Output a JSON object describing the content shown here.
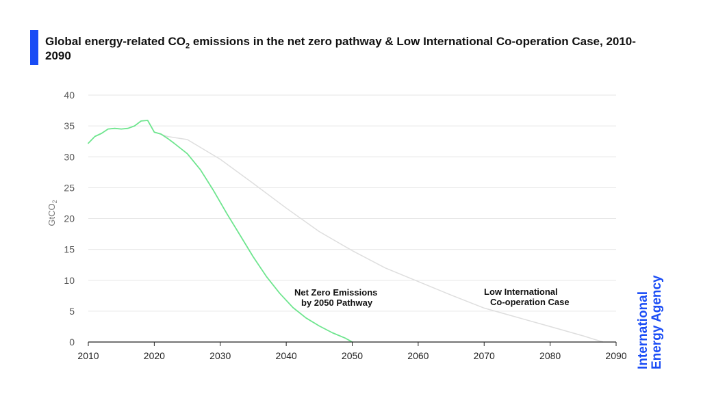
{
  "colors": {
    "accent": "#1a4cf5",
    "title": "#111111",
    "grid": "#e6e6e6",
    "axis": "#222222",
    "tick_text": "#555555",
    "net_zero": "#6ee58e",
    "low_coop": "#dedede"
  },
  "title": {
    "prefix": "Global energy-related CO",
    "sub": "2",
    "suffix": " emissions in the net zero pathway & Low International Co-operation Case, 2010-2090"
  },
  "branding": {
    "line1": "International",
    "line2": "Energy Agency"
  },
  "chart_data": {
    "type": "line",
    "title": "Global energy-related CO2 emissions in the net zero pathway & Low International Co-operation Case, 2010-2090",
    "xlabel": "",
    "ylabel": "GtCO2",
    "xlim": [
      2010,
      2090
    ],
    "ylim": [
      0,
      40
    ],
    "xticks": [
      2010,
      2020,
      2030,
      2040,
      2050,
      2060,
      2070,
      2080,
      2090
    ],
    "yticks": [
      0,
      5,
      10,
      15,
      20,
      25,
      30,
      35,
      40
    ],
    "grid": "horizontal",
    "legend": "none",
    "series": [
      {
        "name": "Net Zero Emissions by 2050 Pathway",
        "label_lines": [
          "Net Zero Emissions",
          "by 2050 Pathway"
        ],
        "color": "#6ee58e",
        "points": [
          [
            2010,
            32.2
          ],
          [
            2011,
            33.3
          ],
          [
            2012,
            33.8
          ],
          [
            2013,
            34.5
          ],
          [
            2014,
            34.6
          ],
          [
            2015,
            34.5
          ],
          [
            2016,
            34.6
          ],
          [
            2017,
            35.0
          ],
          [
            2018,
            35.8
          ],
          [
            2019,
            35.9
          ],
          [
            2020,
            34.0
          ],
          [
            2021,
            33.7
          ],
          [
            2022,
            33.0
          ],
          [
            2023,
            32.2
          ],
          [
            2025,
            30.5
          ],
          [
            2027,
            27.9
          ],
          [
            2029,
            24.5
          ],
          [
            2031,
            20.8
          ],
          [
            2033,
            17.3
          ],
          [
            2035,
            13.8
          ],
          [
            2037,
            10.6
          ],
          [
            2039,
            7.9
          ],
          [
            2041,
            5.6
          ],
          [
            2043,
            3.9
          ],
          [
            2045,
            2.6
          ],
          [
            2047,
            1.5
          ],
          [
            2049,
            0.6
          ],
          [
            2050,
            0.0
          ]
        ]
      },
      {
        "name": "Low International Co-operation Case",
        "label_lines": [
          "Low International",
          "Co-operation Case"
        ],
        "color": "#dedede",
        "points": [
          [
            2020,
            34.0
          ],
          [
            2022,
            33.3
          ],
          [
            2025,
            32.8
          ],
          [
            2030,
            29.6
          ],
          [
            2035,
            25.7
          ],
          [
            2040,
            21.7
          ],
          [
            2045,
            17.9
          ],
          [
            2050,
            14.8
          ],
          [
            2055,
            12.0
          ],
          [
            2060,
            9.8
          ],
          [
            2065,
            7.6
          ],
          [
            2070,
            5.5
          ],
          [
            2075,
            4.0
          ],
          [
            2080,
            2.5
          ],
          [
            2085,
            1.0
          ],
          [
            2088,
            0.0
          ]
        ]
      }
    ]
  }
}
